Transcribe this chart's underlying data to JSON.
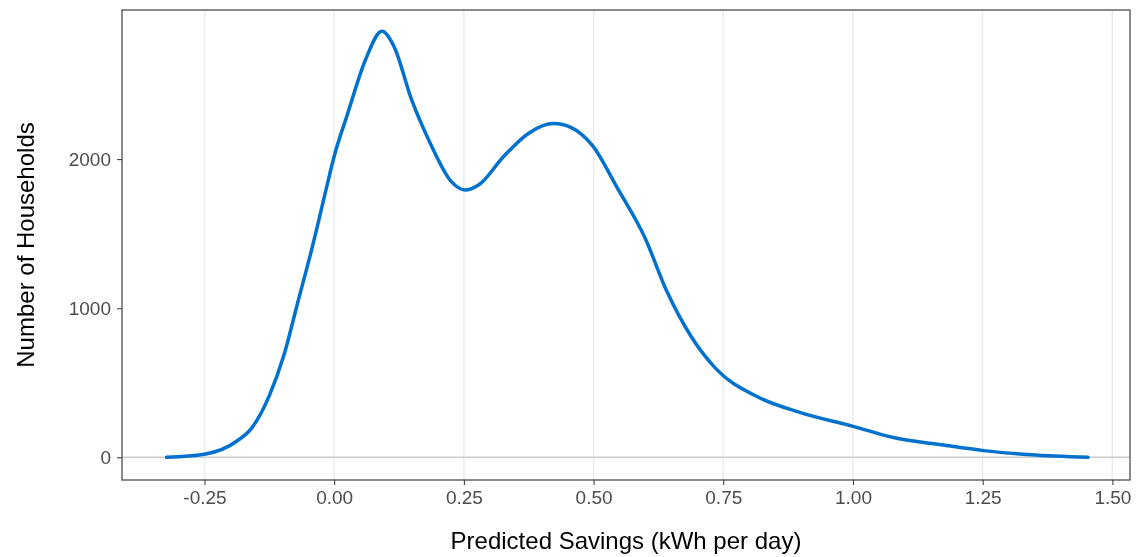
{
  "chart_data": {
    "type": "line",
    "xlabel": "Predicted Savings (kWh per day)",
    "ylabel": "Number of Households",
    "x": [
      -0.323,
      -0.25,
      -0.186,
      -0.159,
      -0.124,
      -0.097,
      -0.07,
      -0.043,
      -0.015,
      0.0,
      0.026,
      0.06,
      0.092,
      0.115,
      0.149,
      0.184,
      0.225,
      0.252,
      0.279,
      0.327,
      0.375,
      0.423,
      0.458,
      0.498,
      0.546,
      0.599,
      0.641,
      0.689,
      0.737,
      0.813,
      0.896,
      1.0,
      1.08,
      1.171,
      1.252,
      1.343,
      1.453
    ],
    "series": [
      {
        "color": "#0072ce",
        "values": [
          0,
          21,
          113,
          196,
          422,
          684,
          1042,
          1399,
          1805,
          2019,
          2305,
          2663,
          2858,
          2758,
          2400,
          2115,
          1852,
          1793,
          1828,
          2019,
          2174,
          2238,
          2210,
          2090,
          1805,
          1473,
          1115,
          805,
          590,
          411,
          303,
          208,
          131,
          84,
          45,
          17,
          0
        ]
      }
    ],
    "xlim": [
      -0.409,
      1.534
    ],
    "xticks": [
      {
        "value": -0.25,
        "label": "-0.25"
      },
      {
        "value": 0,
        "label": "0.00"
      },
      {
        "value": 0.25,
        "label": "0.25"
      },
      {
        "value": 0.5,
        "label": "0.50"
      },
      {
        "value": 0.75,
        "label": "0.75"
      },
      {
        "value": 1,
        "label": "1.00"
      },
      {
        "value": 1.25,
        "label": "1.25"
      },
      {
        "value": 1.5,
        "label": "1.50"
      }
    ],
    "ylim": [
      -152,
      3000
    ],
    "yticks": [
      0,
      1000,
      2000
    ],
    "grid": "x",
    "ref_lines": [
      {
        "axis": "y",
        "value": 0,
        "color": "#cccccc"
      }
    ],
    "marker": "none",
    "line_style": "solid"
  }
}
